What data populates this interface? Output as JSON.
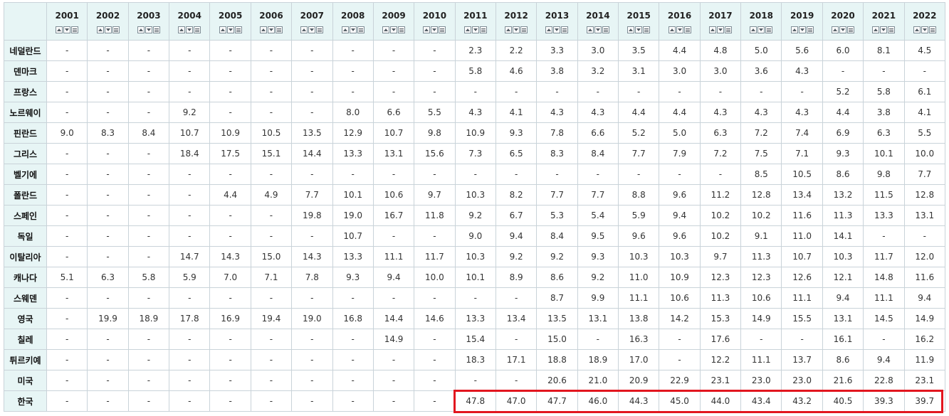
{
  "years": [
    "2001",
    "2002",
    "2003",
    "2004",
    "2005",
    "2006",
    "2007",
    "2008",
    "2009",
    "2010",
    "2011",
    "2012",
    "2013",
    "2014",
    "2015",
    "2016",
    "2017",
    "2018",
    "2019",
    "2020",
    "2021",
    "2022"
  ],
  "rows": [
    {
      "country": "네덜란드",
      "values": [
        "-",
        "-",
        "-",
        "-",
        "-",
        "-",
        "-",
        "-",
        "-",
        "-",
        "2.3",
        "2.2",
        "3.3",
        "3.0",
        "3.5",
        "4.4",
        "4.8",
        "5.0",
        "5.6",
        "6.0",
        "8.1",
        "4.5"
      ]
    },
    {
      "country": "덴마크",
      "values": [
        "-",
        "-",
        "-",
        "-",
        "-",
        "-",
        "-",
        "-",
        "-",
        "-",
        "5.8",
        "4.6",
        "3.8",
        "3.2",
        "3.1",
        "3.0",
        "3.0",
        "3.6",
        "4.3",
        "-",
        "-",
        "-"
      ]
    },
    {
      "country": "프랑스",
      "values": [
        "-",
        "-",
        "-",
        "-",
        "-",
        "-",
        "-",
        "-",
        "-",
        "-",
        "-",
        "-",
        "-",
        "-",
        "-",
        "-",
        "-",
        "-",
        "-",
        "5.2",
        "5.8",
        "6.1"
      ]
    },
    {
      "country": "노르웨이",
      "values": [
        "-",
        "-",
        "-",
        "9.2",
        "-",
        "-",
        "-",
        "8.0",
        "6.6",
        "5.5",
        "4.3",
        "4.1",
        "4.3",
        "4.3",
        "4.4",
        "4.4",
        "4.3",
        "4.3",
        "4.3",
        "4.4",
        "3.8",
        "4.1"
      ]
    },
    {
      "country": "핀란드",
      "values": [
        "9.0",
        "8.3",
        "8.4",
        "10.7",
        "10.9",
        "10.5",
        "13.5",
        "12.9",
        "10.7",
        "9.8",
        "10.9",
        "9.3",
        "7.8",
        "6.6",
        "5.2",
        "5.0",
        "6.3",
        "7.2",
        "7.4",
        "6.9",
        "6.3",
        "5.5"
      ]
    },
    {
      "country": "그리스",
      "values": [
        "-",
        "-",
        "-",
        "18.4",
        "17.5",
        "15.1",
        "14.4",
        "13.3",
        "13.1",
        "15.6",
        "7.3",
        "6.5",
        "8.3",
        "8.4",
        "7.7",
        "7.9",
        "7.2",
        "7.5",
        "7.1",
        "9.3",
        "10.1",
        "10.0"
      ]
    },
    {
      "country": "벨기에",
      "values": [
        "-",
        "-",
        "-",
        "-",
        "-",
        "-",
        "-",
        "-",
        "-",
        "-",
        "-",
        "-",
        "-",
        "-",
        "-",
        "-",
        "-",
        "8.5",
        "10.5",
        "8.6",
        "9.8",
        "7.7"
      ]
    },
    {
      "country": "폴란드",
      "values": [
        "-",
        "-",
        "-",
        "-",
        "4.4",
        "4.9",
        "7.7",
        "10.1",
        "10.6",
        "9.7",
        "10.3",
        "8.2",
        "7.7",
        "7.7",
        "8.8",
        "9.6",
        "11.2",
        "12.8",
        "13.4",
        "13.2",
        "11.5",
        "12.8"
      ]
    },
    {
      "country": "스페인",
      "values": [
        "-",
        "-",
        "-",
        "-",
        "-",
        "-",
        "19.8",
        "19.0",
        "16.7",
        "11.8",
        "9.2",
        "6.7",
        "5.3",
        "5.4",
        "5.9",
        "9.4",
        "10.2",
        "10.2",
        "11.6",
        "11.3",
        "13.3",
        "13.1"
      ]
    },
    {
      "country": "독일",
      "values": [
        "-",
        "-",
        "-",
        "-",
        "-",
        "-",
        "-",
        "10.7",
        "-",
        "-",
        "9.0",
        "9.4",
        "8.4",
        "9.5",
        "9.6",
        "9.6",
        "10.2",
        "9.1",
        "11.0",
        "14.1",
        "-",
        "-"
      ]
    },
    {
      "country": "이탈리아",
      "values": [
        "-",
        "-",
        "-",
        "14.7",
        "14.3",
        "15.0",
        "14.3",
        "13.3",
        "11.1",
        "11.7",
        "10.3",
        "9.2",
        "9.2",
        "9.3",
        "10.3",
        "10.3",
        "9.7",
        "11.3",
        "10.7",
        "10.3",
        "11.7",
        "12.0"
      ]
    },
    {
      "country": "캐나다",
      "values": [
        "5.1",
        "6.3",
        "5.8",
        "5.9",
        "7.0",
        "7.1",
        "7.8",
        "9.3",
        "9.4",
        "10.0",
        "10.1",
        "8.9",
        "8.6",
        "9.2",
        "11.0",
        "10.9",
        "12.3",
        "12.3",
        "12.6",
        "12.1",
        "14.8",
        "11.6"
      ]
    },
    {
      "country": "스웨덴",
      "values": [
        "-",
        "-",
        "-",
        "-",
        "-",
        "-",
        "-",
        "-",
        "-",
        "-",
        "-",
        "-",
        "8.7",
        "9.9",
        "11.1",
        "10.6",
        "11.3",
        "10.6",
        "11.1",
        "9.4",
        "11.1",
        "9.4"
      ]
    },
    {
      "country": "영국",
      "values": [
        "-",
        "19.9",
        "18.9",
        "17.8",
        "16.9",
        "19.4",
        "19.0",
        "16.8",
        "14.4",
        "14.6",
        "13.3",
        "13.4",
        "13.5",
        "13.1",
        "13.8",
        "14.2",
        "15.3",
        "14.9",
        "15.5",
        "13.1",
        "14.5",
        "14.9"
      ]
    },
    {
      "country": "칠레",
      "values": [
        "-",
        "-",
        "-",
        "-",
        "-",
        "-",
        "-",
        "-",
        "14.9",
        "-",
        "15.4",
        "-",
        "15.0",
        "-",
        "16.3",
        "-",
        "17.6",
        "-",
        "-",
        "16.1",
        "-",
        "16.2"
      ]
    },
    {
      "country": "튀르키예",
      "values": [
        "-",
        "-",
        "-",
        "-",
        "-",
        "-",
        "-",
        "-",
        "-",
        "-",
        "18.3",
        "17.1",
        "18.8",
        "18.9",
        "17.0",
        "-",
        "12.2",
        "11.1",
        "13.7",
        "8.6",
        "9.4",
        "11.9"
      ]
    },
    {
      "country": "미국",
      "values": [
        "-",
        "-",
        "-",
        "-",
        "-",
        "-",
        "-",
        "-",
        "-",
        "-",
        "-",
        "-",
        "20.6",
        "21.0",
        "20.9",
        "22.9",
        "23.1",
        "23.0",
        "23.0",
        "21.6",
        "22.8",
        "23.1"
      ]
    },
    {
      "country": "한국",
      "values": [
        "-",
        "-",
        "-",
        "-",
        "-",
        "-",
        "-",
        "-",
        "-",
        "-",
        "47.8",
        "47.0",
        "47.7",
        "46.0",
        "44.3",
        "45.0",
        "44.0",
        "43.4",
        "43.2",
        "40.5",
        "39.3",
        "39.7"
      ]
    }
  ],
  "sort_icons": [
    "sort-up-icon",
    "sort-down-icon",
    "filter-menu-icon"
  ],
  "highlight_color": "#e2161f"
}
